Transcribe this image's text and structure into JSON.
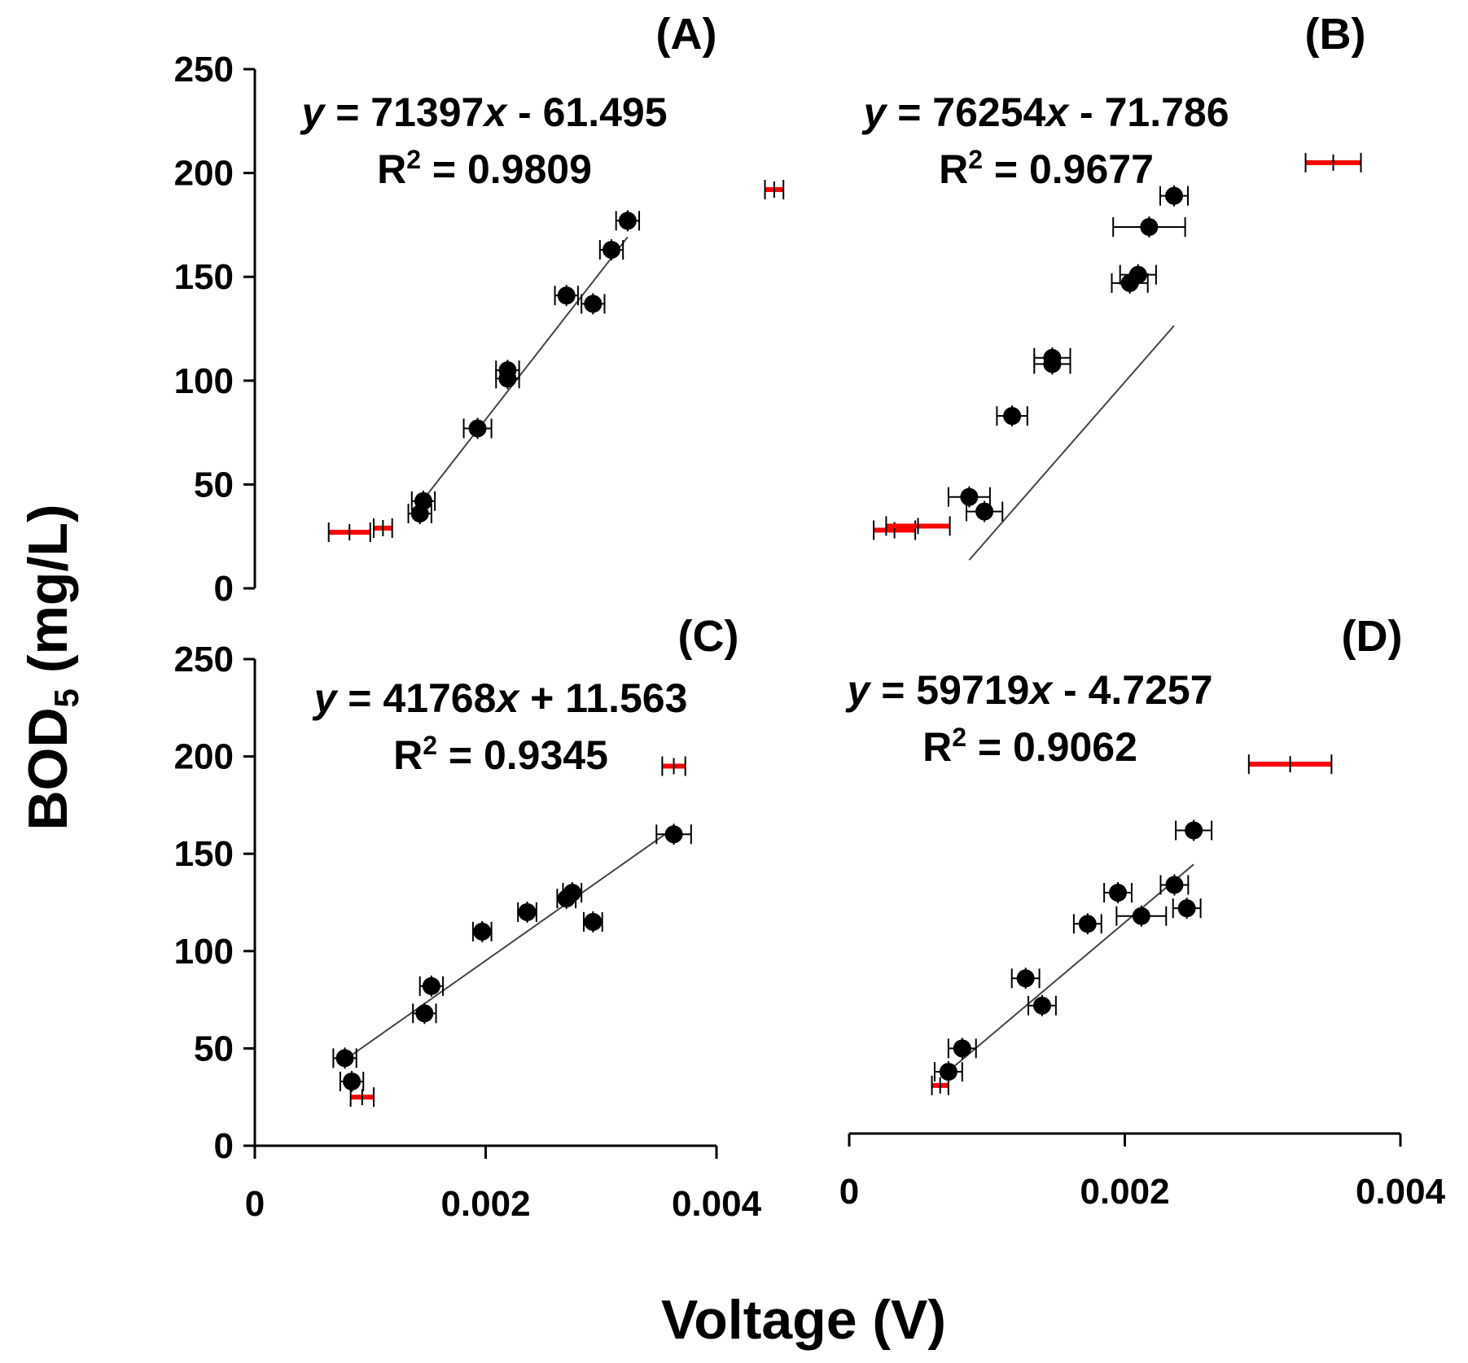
{
  "x_axis_title": "Voltage (V)",
  "y_axis_title": {
    "main": "BOD",
    "sub": "5",
    "units": " (mg/L)"
  },
  "colors": {
    "points": "#000000",
    "error_bar_black": "#000000",
    "error_bar_red": "#ff0000",
    "fit_line": "#444444"
  },
  "chart_data": [
    {
      "type": "scatter",
      "panel_label": "(A)",
      "equation": {
        "y": "y",
        "rest1": " = 71397",
        "x": "x",
        "rest2": " - 61.495"
      },
      "r2": {
        "R": "R",
        "sup": "2",
        "rest": " = 0.9809"
      },
      "xlim": [
        0,
        0.004
      ],
      "ylim": [
        0,
        250
      ],
      "x_ticks": [
        "0",
        "0.002",
        "0.004"
      ],
      "y_ticks": [
        "0",
        "50",
        "100",
        "150",
        "200",
        "250"
      ],
      "show_x_tick_labels": false,
      "trendline": {
        "slope": 71397,
        "intercept": -61.495,
        "x_range": [
          0.00143,
          0.00323
        ]
      },
      "points": [
        {
          "x": 0.00143,
          "y": 36,
          "xerr": 0.0001
        },
        {
          "x": 0.00146,
          "y": 42,
          "xerr": 0.0001
        },
        {
          "x": 0.00193,
          "y": 77,
          "xerr": 0.00012
        },
        {
          "x": 0.00219,
          "y": 101,
          "xerr": 0.0001
        },
        {
          "x": 0.00219,
          "y": 105,
          "xerr": 0.0001
        },
        {
          "x": 0.0027,
          "y": 141,
          "xerr": 0.0001
        },
        {
          "x": 0.00293,
          "y": 137,
          "xerr": 0.0001
        },
        {
          "x": 0.00309,
          "y": 163,
          "xerr": 0.0001
        },
        {
          "x": 0.00323,
          "y": 177,
          "xerr": 0.0001
        }
      ],
      "outliers": [
        {
          "x": 0.00082,
          "y": 27,
          "xerr": 0.00018
        },
        {
          "x": 0.00111,
          "y": 29,
          "xerr": 8e-05
        },
        {
          "x": 0.0045,
          "y": 192,
          "xerr": 8e-05
        }
      ]
    },
    {
      "type": "scatter",
      "panel_label": "(B)",
      "equation": {
        "y": "y",
        "rest1": " = 76254",
        "x": "x",
        "rest2": " - 71.786"
      },
      "r2": {
        "R": "R",
        "sup": "2",
        "rest": " = 0.9677"
      },
      "xlim": [
        0,
        0.004
      ],
      "ylim": [
        0,
        250
      ],
      "x_ticks": [],
      "y_ticks": [],
      "show_x_tick_labels": false,
      "trendline": {
        "slope": 76254,
        "intercept": -71.786,
        "x_range": [
          0.00112,
          0.0026
        ]
      },
      "points": [
        {
          "x": 0.00112,
          "y": 44,
          "xerr": 0.00015
        },
        {
          "x": 0.00123,
          "y": 37,
          "xerr": 0.00013
        },
        {
          "x": 0.00143,
          "y": 83,
          "xerr": 0.00011
        },
        {
          "x": 0.00172,
          "y": 108,
          "xerr": 0.00013
        },
        {
          "x": 0.00172,
          "y": 111,
          "xerr": 0.00013
        },
        {
          "x": 0.00228,
          "y": 147,
          "xerr": 0.00013
        },
        {
          "x": 0.00234,
          "y": 151,
          "xerr": 0.00013
        },
        {
          "x": 0.00242,
          "y": 174,
          "xerr": 0.00026
        },
        {
          "x": 0.0026,
          "y": 189,
          "xerr": 0.0001
        }
      ],
      "outliers": [
        {
          "x": 0.00058,
          "y": 28,
          "xerr": 0.00015
        },
        {
          "x": 0.00075,
          "y": 30,
          "xerr": 0.00023
        },
        {
          "x": 0.00375,
          "y": 205,
          "xerr": 0.0002
        }
      ]
    },
    {
      "type": "scatter",
      "panel_label": "(C)",
      "equation": {
        "y": "y",
        "rest1": " = 41768",
        "x": "x",
        "rest2": " + 11.563"
      },
      "r2": {
        "R": "R",
        "sup": "2",
        "rest": " = 0.9345"
      },
      "xlim": [
        0,
        0.004
      ],
      "ylim": [
        0,
        250
      ],
      "x_ticks": [
        "0",
        "0.002",
        "0.004"
      ],
      "y_ticks": [
        "0",
        "50",
        "100",
        "150",
        "200",
        "250"
      ],
      "show_x_tick_labels": true,
      "trendline": {
        "slope": 41768,
        "intercept": 11.563,
        "x_range": [
          0.00078,
          0.00363
        ]
      },
      "points": [
        {
          "x": 0.00078,
          "y": 45,
          "xerr": 0.0001
        },
        {
          "x": 0.00084,
          "y": 33,
          "xerr": 0.0001
        },
        {
          "x": 0.00147,
          "y": 68,
          "xerr": 0.0001
        },
        {
          "x": 0.00153,
          "y": 82,
          "xerr": 0.0001
        },
        {
          "x": 0.00197,
          "y": 110,
          "xerr": 8e-05
        },
        {
          "x": 0.00236,
          "y": 120,
          "xerr": 8e-05
        },
        {
          "x": 0.0027,
          "y": 127,
          "xerr": 8e-05
        },
        {
          "x": 0.00275,
          "y": 130,
          "xerr": 8e-05
        },
        {
          "x": 0.00293,
          "y": 115,
          "xerr": 8e-05
        },
        {
          "x": 0.00363,
          "y": 160,
          "xerr": 0.00015
        }
      ],
      "outliers": [
        {
          "x": 0.00093,
          "y": 25,
          "xerr": 0.0001
        },
        {
          "x": 0.00363,
          "y": 195,
          "xerr": 0.0001
        }
      ]
    },
    {
      "type": "scatter",
      "panel_label": "(D)",
      "equation": {
        "y": "y",
        "rest1": " = 59719",
        "x": "x",
        "rest2": " - 4.7257"
      },
      "r2": {
        "R": "R",
        "sup": "2",
        "rest": " = 0.9062"
      },
      "xlim": [
        0,
        0.004
      ],
      "ylim": [
        0,
        250
      ],
      "x_ticks": [
        "0",
        "0.002",
        "0.004"
      ],
      "y_ticks": [],
      "show_x_tick_labels": true,
      "trendline": {
        "slope": 59719,
        "intercept": -4.7257,
        "x_range": [
          0.00068,
          0.0025
        ]
      },
      "points": [
        {
          "x": 0.00072,
          "y": 38,
          "xerr": 0.0001
        },
        {
          "x": 0.00082,
          "y": 50,
          "xerr": 0.0001
        },
        {
          "x": 0.00128,
          "y": 86,
          "xerr": 0.0001
        },
        {
          "x": 0.0014,
          "y": 72,
          "xerr": 0.0001
        },
        {
          "x": 0.00173,
          "y": 114,
          "xerr": 0.0001
        },
        {
          "x": 0.00195,
          "y": 130,
          "xerr": 0.0001
        },
        {
          "x": 0.00212,
          "y": 118,
          "xerr": 0.00018
        },
        {
          "x": 0.00236,
          "y": 134,
          "xerr": 0.0001
        },
        {
          "x": 0.00245,
          "y": 122,
          "xerr": 0.0001
        },
        {
          "x": 0.0025,
          "y": 162,
          "xerr": 0.00013
        }
      ],
      "outliers": [
        {
          "x": 0.00066,
          "y": 31,
          "xerr": 6e-05
        },
        {
          "x": 0.0032,
          "y": 196,
          "xerr": 0.0003
        }
      ]
    }
  ]
}
